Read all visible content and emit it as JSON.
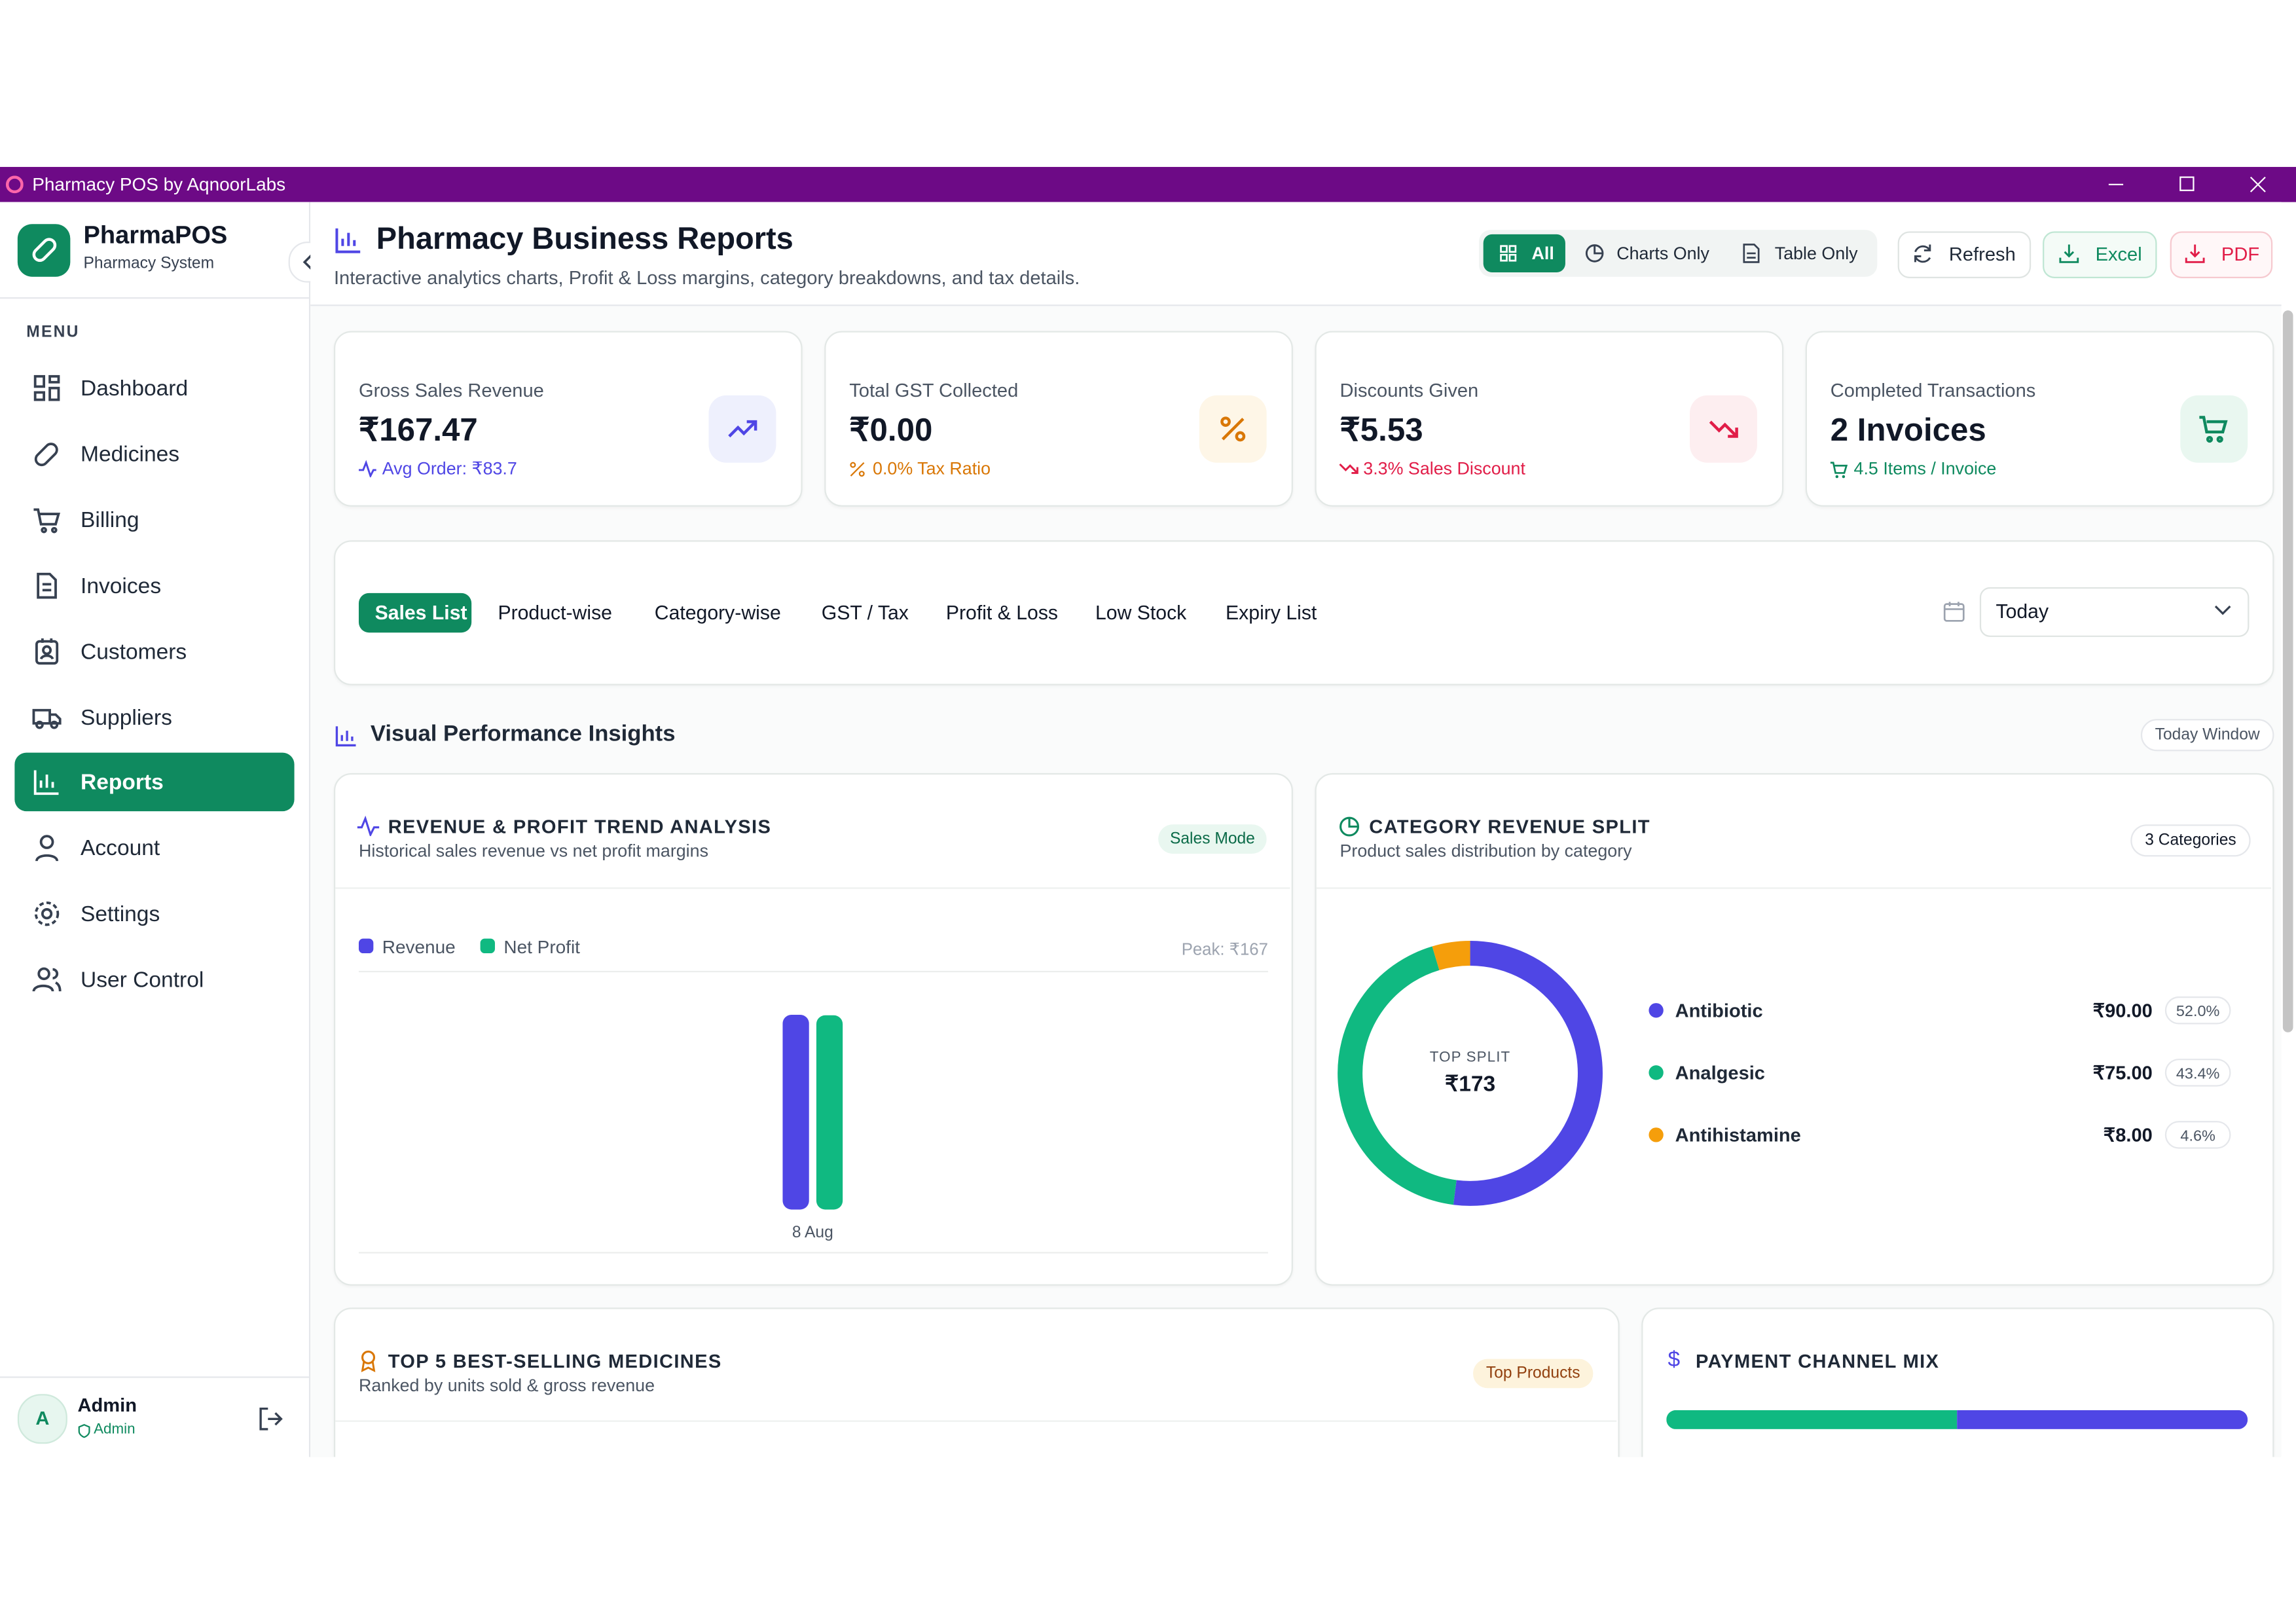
{
  "window": {
    "title": "Pharmacy POS by AqnoorLabs"
  },
  "sidebar": {
    "brand": "PharmaPOS",
    "subtitle": "Pharmacy System",
    "menu_label": "MENU",
    "items": [
      "Dashboard",
      "Medicines",
      "Billing",
      "Invoices",
      "Customers",
      "Suppliers",
      "Reports",
      "Account",
      "Settings",
      "User Control"
    ],
    "user": {
      "initial": "A",
      "name": "Admin",
      "role": "Admin"
    }
  },
  "header": {
    "title": "Pharmacy Business Reports",
    "subtitle": "Interactive analytics charts, Profit & Loss margins, category breakdowns, and tax details.",
    "views": [
      "All",
      "Charts Only",
      "Table Only"
    ],
    "actions": [
      "Refresh",
      "Excel",
      "PDF"
    ]
  },
  "kpis": [
    {
      "label": "Gross Sales Revenue",
      "value": "₹167.47",
      "note": "Avg Order: ₹83.7"
    },
    {
      "label": "Total GST Collected",
      "value": "₹0.00",
      "note": "0.0% Tax Ratio"
    },
    {
      "label": "Discounts Given",
      "value": "₹5.53",
      "note": "3.3% Sales Discount"
    },
    {
      "label": "Completed Transactions",
      "value": "2 Invoices",
      "note": "4.5 Items / Invoice"
    }
  ],
  "tabs": {
    "items": [
      "Sales List",
      "Product-wise",
      "Category-wise",
      "GST / Tax",
      "Profit & Loss",
      "Low Stock",
      "Expiry List"
    ],
    "range": "Today"
  },
  "insights": {
    "title": "Visual Performance Insights",
    "badge": "Today Window"
  },
  "trend_chart": {
    "type": "bar",
    "title": "REVENUE & PROFIT TREND ANALYSIS",
    "subtitle": "Historical sales revenue vs net profit margins",
    "badge": "Sales Mode",
    "peak": "Peak: ₹167",
    "categories": [
      "8 Aug"
    ],
    "series": [
      {
        "name": "Revenue",
        "color": "#4f46e5",
        "values": [
          167.47
        ]
      },
      {
        "name": "Net Profit",
        "color": "#10b981",
        "values": [
          167
        ]
      }
    ]
  },
  "category_chart": {
    "type": "pie",
    "title": "CATEGORY REVENUE SPLIT",
    "subtitle": "Product sales distribution by category",
    "badge": "3 Categories",
    "center_label": "TOP SPLIT",
    "center_value": "₹173",
    "categories": [
      "Antibiotic",
      "Analgesic",
      "Antihistamine"
    ],
    "values": [
      90,
      75,
      8
    ],
    "value_labels": [
      "₹90.00",
      "₹75.00",
      "₹8.00"
    ],
    "percent_labels": [
      "52.0%",
      "43.4%",
      "4.6%"
    ],
    "colors": [
      "#4f46e5",
      "#10b981",
      "#f59e0b"
    ]
  },
  "top_products": {
    "title": "TOP 5 BEST-SELLING MEDICINES",
    "subtitle": "Ranked by units sold & gross revenue",
    "badge": "Top Products"
  },
  "payment": {
    "title": "PAYMENT CHANNEL MIX",
    "values": [
      50,
      50
    ],
    "colors": [
      "#10b981",
      "#4f46e5"
    ]
  }
}
